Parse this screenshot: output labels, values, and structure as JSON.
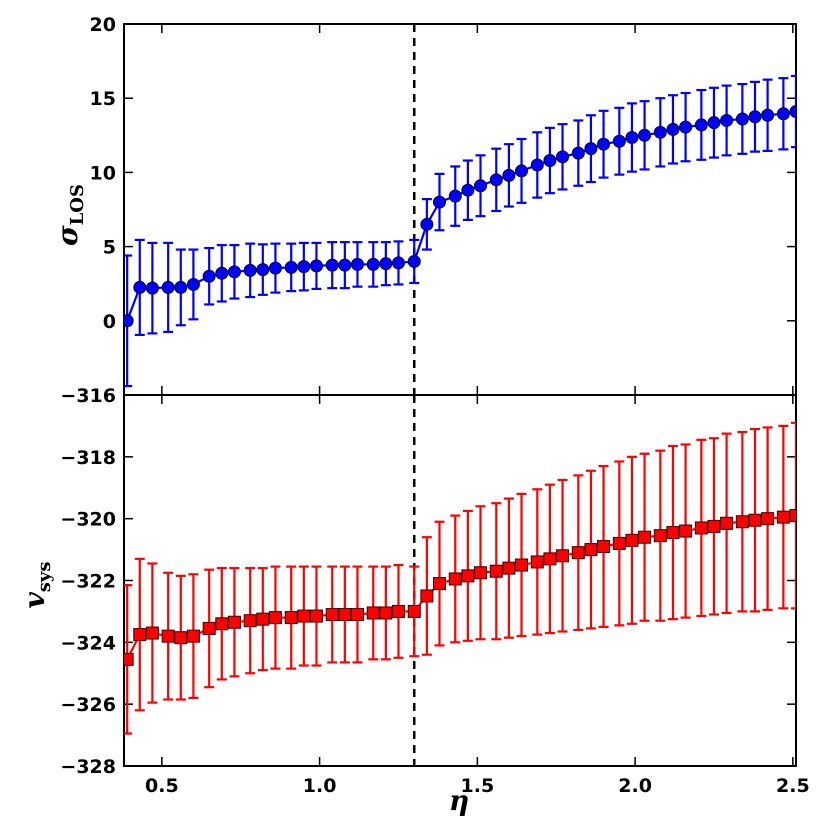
{
  "chart_data": [
    {
      "type": "line",
      "panel": "top",
      "ylabel_main": "σ",
      "ylabel_sub": "LOS",
      "xlabel": "",
      "ylim": [
        -5,
        20
      ],
      "xlim": [
        0.38,
        2.51
      ],
      "yticks": [
        0,
        5,
        10,
        15,
        20
      ],
      "ytick_labels": [
        "0",
        "5",
        "10",
        "15",
        "20"
      ],
      "bottom_tick_label": "−316",
      "grid": false,
      "marker": "circle",
      "color": "#0000ff",
      "marker_edge": "#000033",
      "x": [
        0.39,
        0.43,
        0.47,
        0.52,
        0.56,
        0.6,
        0.65,
        0.69,
        0.73,
        0.78,
        0.82,
        0.86,
        0.91,
        0.95,
        0.99,
        1.04,
        1.08,
        1.12,
        1.17,
        1.21,
        1.25,
        1.3,
        1.34,
        1.38,
        1.43,
        1.47,
        1.51,
        1.56,
        1.6,
        1.64,
        1.69,
        1.73,
        1.77,
        1.82,
        1.86,
        1.9,
        1.95,
        1.99,
        2.03,
        2.08,
        2.12,
        2.16,
        2.21,
        2.25,
        2.29,
        2.34,
        2.38,
        2.42,
        2.47,
        2.51
      ],
      "y": [
        0.0,
        2.25,
        2.2,
        2.25,
        2.25,
        2.45,
        3.0,
        3.2,
        3.3,
        3.4,
        3.45,
        3.55,
        3.6,
        3.65,
        3.7,
        3.75,
        3.75,
        3.8,
        3.8,
        3.85,
        3.9,
        4.0,
        6.5,
        8.0,
        8.4,
        8.8,
        9.1,
        9.5,
        9.8,
        10.1,
        10.5,
        10.8,
        11.05,
        11.3,
        11.6,
        11.9,
        12.1,
        12.35,
        12.5,
        12.7,
        12.9,
        13.05,
        13.2,
        13.35,
        13.5,
        13.6,
        13.75,
        13.85,
        13.95,
        14.1
      ],
      "yerr": [
        4.4,
        3.2,
        3.05,
        3.0,
        2.55,
        2.35,
        1.9,
        1.9,
        1.8,
        1.8,
        1.7,
        1.65,
        1.6,
        1.6,
        1.55,
        1.55,
        1.55,
        1.5,
        1.5,
        1.45,
        1.45,
        1.45,
        1.7,
        1.9,
        2.0,
        2.0,
        2.05,
        2.1,
        2.1,
        2.15,
        2.2,
        2.2,
        2.2,
        2.2,
        2.25,
        2.25,
        2.25,
        2.3,
        2.3,
        2.3,
        2.3,
        2.3,
        2.35,
        2.35,
        2.35,
        2.35,
        2.35,
        2.4,
        2.4,
        2.4
      ]
    },
    {
      "type": "line",
      "panel": "bottom",
      "ylabel_main": "v",
      "ylabel_sub": "sys",
      "xlabel": "η",
      "ylim": [
        -328,
        -316
      ],
      "xlim": [
        0.38,
        2.51
      ],
      "yticks": [
        -328,
        -326,
        -324,
        -322,
        -320,
        -318
      ],
      "ytick_labels": [
        "−328",
        "−326",
        "−324",
        "−322",
        "−320",
        "−318"
      ],
      "xticks": [
        0.5,
        1.0,
        1.5,
        2.0,
        2.5
      ],
      "xtick_labels": [
        "0.5",
        "1.0",
        "1.5",
        "2.0",
        "2.5"
      ],
      "grid": false,
      "marker": "square",
      "color": "#ff0000",
      "marker_edge": "#330000",
      "x": [
        0.39,
        0.43,
        0.47,
        0.52,
        0.56,
        0.6,
        0.65,
        0.69,
        0.73,
        0.78,
        0.82,
        0.86,
        0.91,
        0.95,
        0.99,
        1.04,
        1.08,
        1.12,
        1.17,
        1.21,
        1.25,
        1.3,
        1.34,
        1.38,
        1.43,
        1.47,
        1.51,
        1.56,
        1.6,
        1.64,
        1.69,
        1.73,
        1.77,
        1.82,
        1.86,
        1.9,
        1.95,
        1.99,
        2.03,
        2.08,
        2.12,
        2.16,
        2.21,
        2.25,
        2.29,
        2.34,
        2.38,
        2.42,
        2.47,
        2.51
      ],
      "y": [
        -324.55,
        -323.75,
        -323.7,
        -323.8,
        -323.85,
        -323.8,
        -323.55,
        -323.4,
        -323.35,
        -323.3,
        -323.25,
        -323.2,
        -323.2,
        -323.15,
        -323.15,
        -323.1,
        -323.1,
        -323.1,
        -323.05,
        -323.05,
        -323.0,
        -323.0,
        -322.5,
        -322.1,
        -321.95,
        -321.85,
        -321.75,
        -321.7,
        -321.6,
        -321.5,
        -321.4,
        -321.3,
        -321.2,
        -321.1,
        -321.0,
        -320.9,
        -320.8,
        -320.7,
        -320.6,
        -320.55,
        -320.45,
        -320.4,
        -320.3,
        -320.25,
        -320.15,
        -320.1,
        -320.05,
        -320.0,
        -319.95,
        -319.9
      ],
      "yerr": [
        2.4,
        2.45,
        2.25,
        2.05,
        2.0,
        2.0,
        1.9,
        1.8,
        1.75,
        1.7,
        1.65,
        1.65,
        1.65,
        1.6,
        1.6,
        1.55,
        1.55,
        1.55,
        1.5,
        1.5,
        1.5,
        1.45,
        1.9,
        2.0,
        2.05,
        2.1,
        2.15,
        2.2,
        2.25,
        2.3,
        2.35,
        2.4,
        2.45,
        2.5,
        2.55,
        2.6,
        2.65,
        2.7,
        2.7,
        2.75,
        2.8,
        2.8,
        2.85,
        2.85,
        2.9,
        2.9,
        2.95,
        2.95,
        2.95,
        3.0
      ]
    }
  ],
  "reference_line": {
    "x": 1.3,
    "style": "dashed",
    "color": "#000000"
  }
}
